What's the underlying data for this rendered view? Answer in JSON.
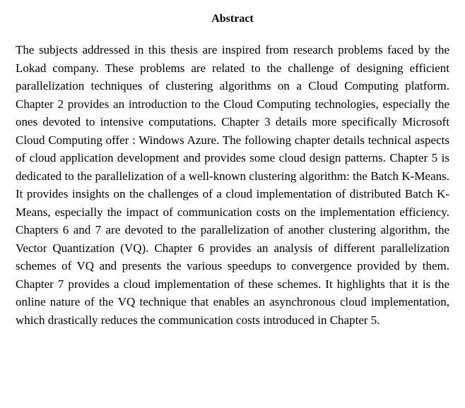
{
  "abstract": {
    "title": "Abstract",
    "body": "The subjects addressed in this thesis are inspired from research problems faced by the Lokad company. These problems are related to the challenge of designing efficient parallelization techniques of clustering algorithms on a Cloud Computing platform. Chapter 2 provides an introduction to the Cloud Computing technologies, especially the ones devoted to intensive computations. Chapter 3 details more specifically Microsoft Cloud Computing offer : Windows Azure. The following chapter details technical aspects of cloud application development and provides some cloud design patterns. Chapter 5 is dedicated to the parallelization of a well-known clustering algorithm: the Batch K-Means. It provides insights on the challenges of a cloud implementation of distributed Batch K-Means, especially the impact of communication costs on the implementation efficiency. Chapters 6 and 7 are devoted to the parallelization of another clustering algorithm, the Vector Quantization (VQ). Chapter 6 provides an analysis of different parallelization schemes of VQ and presents the various speedups to convergence provided by them. Chapter 7 provides a cloud implementation of these schemes. It highlights that it is the online nature of the VQ technique that enables an asynchronous cloud implementation, which drastically reduces the communication costs introduced in Chapter 5."
  },
  "style": {
    "background_color": "#ffffff",
    "text_color": "#000000",
    "title_fontsize": 16,
    "body_fontsize": 17,
    "line_height": 1.5,
    "font_family": "Georgia, 'Times New Roman', serif"
  }
}
